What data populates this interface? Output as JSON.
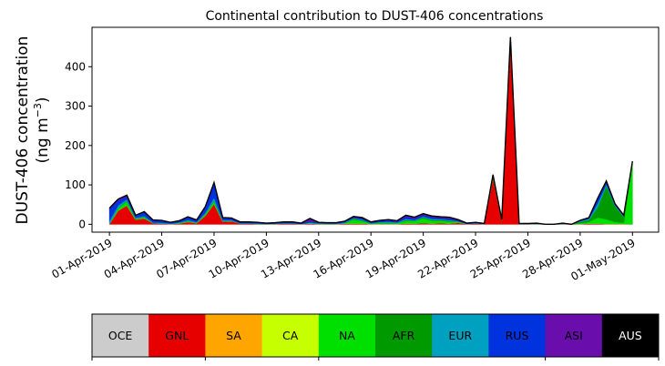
{
  "chart_data": {
    "type": "area",
    "stacked": true,
    "title": "Continental contribution to DUST-406 concentrations",
    "ylabel_line1": "DUST-406 concentration",
    "ylabel_line2_prefix": "(ng m",
    "ylabel_line2_sup": "−3",
    "ylabel_line2_suffix": ")",
    "xlim": [
      -1,
      31.5
    ],
    "ylim": [
      -20,
      500
    ],
    "yticks": [
      0,
      100,
      200,
      300,
      400
    ],
    "xticks": [
      {
        "x": 0,
        "label": "01-Apr-2019"
      },
      {
        "x": 3,
        "label": "04-Apr-2019"
      },
      {
        "x": 6,
        "label": "07-Apr-2019"
      },
      {
        "x": 9,
        "label": "10-Apr-2019"
      },
      {
        "x": 12,
        "label": "13-Apr-2019"
      },
      {
        "x": 15,
        "label": "16-Apr-2019"
      },
      {
        "x": 18,
        "label": "19-Apr-2019"
      },
      {
        "x": 21,
        "label": "22-Apr-2019"
      },
      {
        "x": 24,
        "label": "25-Apr-2019"
      },
      {
        "x": 27,
        "label": "28-Apr-2019"
      },
      {
        "x": 30,
        "label": "01-May-2019"
      }
    ],
    "x": [
      0,
      0.5,
      1,
      1.5,
      2,
      2.5,
      3,
      3.5,
      4,
      4.5,
      5,
      5.5,
      6,
      6.5,
      7,
      7.5,
      8,
      8.5,
      9,
      9.5,
      10,
      10.5,
      11,
      11.5,
      12,
      12.5,
      13,
      13.5,
      14,
      14.5,
      15,
      15.5,
      16,
      16.5,
      17,
      17.5,
      18,
      18.5,
      19,
      19.5,
      20,
      20.5,
      21,
      21.5,
      22,
      22.5,
      23,
      23.5,
      24,
      24.5,
      25,
      25.5,
      26,
      26.5,
      27,
      27.5,
      28,
      28.5,
      29,
      29.5,
      30
    ],
    "series": [
      {
        "name": "OCE",
        "color": "#cccccc",
        "values": [
          0,
          0,
          0,
          0,
          0,
          0,
          0,
          0,
          0,
          0,
          0,
          0,
          0,
          0,
          0,
          0,
          0,
          0,
          0,
          0,
          0,
          0,
          0,
          0,
          0,
          0,
          0,
          0,
          0,
          0,
          0,
          0,
          0,
          0,
          0,
          0,
          0,
          0,
          0,
          0,
          0,
          0,
          0,
          0,
          0,
          0,
          0,
          0,
          0,
          0,
          0,
          0,
          0,
          0,
          0,
          0,
          0,
          0,
          0,
          0,
          0
        ]
      },
      {
        "name": "GNL",
        "color": "#e60000",
        "values": [
          1,
          35,
          48,
          12,
          15,
          3,
          2,
          1,
          2,
          6,
          3,
          22,
          52,
          7,
          8,
          2,
          2,
          1,
          1,
          1,
          2,
          2,
          1,
          2,
          1,
          1,
          1,
          2,
          2,
          2,
          1,
          1,
          1,
          1,
          2,
          2,
          3,
          2,
          3,
          2,
          4,
          1,
          2,
          1,
          118,
          10,
          465,
          1,
          1,
          1,
          0,
          0,
          1,
          0,
          1,
          2,
          2,
          1,
          1,
          1,
          0
        ]
      },
      {
        "name": "SA",
        "color": "#ffa500",
        "values": [
          0,
          0,
          0,
          0,
          0,
          0,
          0,
          0,
          0,
          0,
          0,
          0,
          0,
          0,
          0,
          0,
          0,
          0,
          0,
          0,
          0,
          0,
          0,
          0,
          0,
          0,
          0,
          0,
          0,
          0,
          0,
          0,
          0,
          0,
          0,
          0,
          0,
          0,
          0,
          0,
          0,
          0,
          0,
          0,
          0,
          0,
          0,
          0,
          0,
          0,
          0,
          0,
          0,
          0,
          0,
          0,
          0,
          0,
          0,
          0,
          0
        ]
      },
      {
        "name": "CA",
        "color": "#c6ff00",
        "values": [
          0,
          0,
          0,
          0,
          0,
          0,
          0,
          0,
          0,
          0,
          0,
          0,
          0,
          0,
          0,
          0,
          0,
          0,
          0,
          0,
          0,
          0,
          0,
          0,
          0,
          0,
          0,
          0,
          0,
          0,
          0,
          0,
          0,
          0,
          0,
          0,
          0,
          0,
          0,
          0,
          0,
          0,
          0,
          0,
          0,
          0,
          0,
          0,
          0,
          0,
          0,
          0,
          0,
          0,
          0,
          0,
          0,
          0,
          0,
          0,
          0
        ]
      },
      {
        "name": "NA",
        "color": "#00e000",
        "values": [
          0,
          6,
          10,
          2,
          3,
          0,
          0,
          0,
          1,
          2,
          1,
          4,
          6,
          1,
          1,
          0,
          0,
          0,
          0,
          0,
          0,
          0,
          0,
          1,
          0,
          0,
          0,
          1,
          10,
          6,
          1,
          2,
          2,
          2,
          7,
          6,
          12,
          7,
          6,
          5,
          3,
          0,
          0,
          0,
          2,
          1,
          2,
          0,
          0,
          0,
          0,
          0,
          0,
          0,
          2,
          4,
          15,
          12,
          5,
          3,
          160
        ]
      },
      {
        "name": "AFR",
        "color": "#009900",
        "values": [
          0,
          1,
          2,
          1,
          1,
          0,
          0,
          0,
          0,
          1,
          0,
          1,
          2,
          0,
          0,
          0,
          0,
          0,
          0,
          0,
          0,
          0,
          0,
          0,
          1,
          0,
          0,
          0,
          2,
          2,
          0,
          1,
          1,
          0,
          2,
          1,
          3,
          2,
          2,
          2,
          0,
          0,
          0,
          0,
          1,
          0,
          1,
          0,
          0,
          0,
          0,
          0,
          0,
          0,
          3,
          5,
          26,
          85,
          40,
          15,
          0
        ]
      },
      {
        "name": "EUR",
        "color": "#00a0c0",
        "values": [
          8,
          6,
          4,
          2,
          2,
          2,
          2,
          1,
          2,
          2,
          2,
          3,
          8,
          3,
          2,
          1,
          1,
          1,
          0,
          1,
          1,
          1,
          0,
          2,
          1,
          1,
          1,
          2,
          2,
          2,
          1,
          2,
          3,
          2,
          3,
          2,
          2,
          3,
          2,
          2,
          1,
          0,
          1,
          0,
          2,
          0,
          2,
          0,
          0,
          1,
          0,
          0,
          1,
          0,
          2,
          3,
          10,
          4,
          3,
          2,
          0
        ]
      },
      {
        "name": "RUS",
        "color": "#0033dd",
        "values": [
          30,
          13,
          6,
          5,
          10,
          5,
          5,
          2,
          3,
          7,
          4,
          14,
          35,
          5,
          4,
          2,
          2,
          2,
          1,
          1,
          2,
          2,
          1,
          3,
          1,
          1,
          1,
          2,
          2,
          3,
          2,
          3,
          3,
          2,
          5,
          4,
          4,
          4,
          3,
          4,
          2,
          1,
          1,
          0,
          2,
          1,
          3,
          1,
          1,
          1,
          0,
          0,
          1,
          0,
          1,
          2,
          10,
          6,
          2,
          1,
          0
        ]
      },
      {
        "name": "ASI",
        "color": "#6a0dad",
        "values": [
          2,
          3,
          4,
          1,
          1,
          1,
          1,
          1,
          1,
          1,
          1,
          1,
          3,
          1,
          1,
          1,
          1,
          1,
          1,
          1,
          1,
          1,
          1,
          7,
          1,
          1,
          1,
          1,
          2,
          2,
          1,
          1,
          2,
          2,
          4,
          3,
          3,
          3,
          3,
          3,
          2,
          1,
          1,
          1,
          1,
          0,
          2,
          0,
          0,
          0,
          0,
          0,
          0,
          0,
          1,
          1,
          3,
          2,
          1,
          1,
          0
        ]
      },
      {
        "name": "AUS",
        "color": "#000000",
        "values": [
          0,
          0,
          0,
          0,
          0,
          0,
          0,
          0,
          0,
          0,
          0,
          0,
          0,
          0,
          0,
          0,
          0,
          0,
          0,
          0,
          0,
          0,
          0,
          0,
          0,
          0,
          0,
          0,
          0,
          0,
          0,
          0,
          0,
          0,
          0,
          0,
          0,
          0,
          0,
          0,
          0,
          0,
          0,
          0,
          0,
          0,
          0,
          0,
          0,
          0,
          0,
          0,
          0,
          0,
          0,
          0,
          0,
          0,
          0,
          0,
          0
        ]
      }
    ],
    "legend": [
      {
        "label": "OCE",
        "color": "#cccccc",
        "text_color": "#000000"
      },
      {
        "label": "GNL",
        "color": "#e60000",
        "text_color": "#000000"
      },
      {
        "label": "SA",
        "color": "#ffa500",
        "text_color": "#000000"
      },
      {
        "label": "CA",
        "color": "#c6ff00",
        "text_color": "#000000"
      },
      {
        "label": "NA",
        "color": "#00e000",
        "text_color": "#000000"
      },
      {
        "label": "AFR",
        "color": "#009900",
        "text_color": "#000000"
      },
      {
        "label": "EUR",
        "color": "#00a0c0",
        "text_color": "#000000"
      },
      {
        "label": "RUS",
        "color": "#0033dd",
        "text_color": "#000000"
      },
      {
        "label": "ASI",
        "color": "#6a0dad",
        "text_color": "#000000"
      },
      {
        "label": "AUS",
        "color": "#000000",
        "text_color": "#ffffff"
      }
    ],
    "legend_position": "bottom",
    "grid": false
  }
}
